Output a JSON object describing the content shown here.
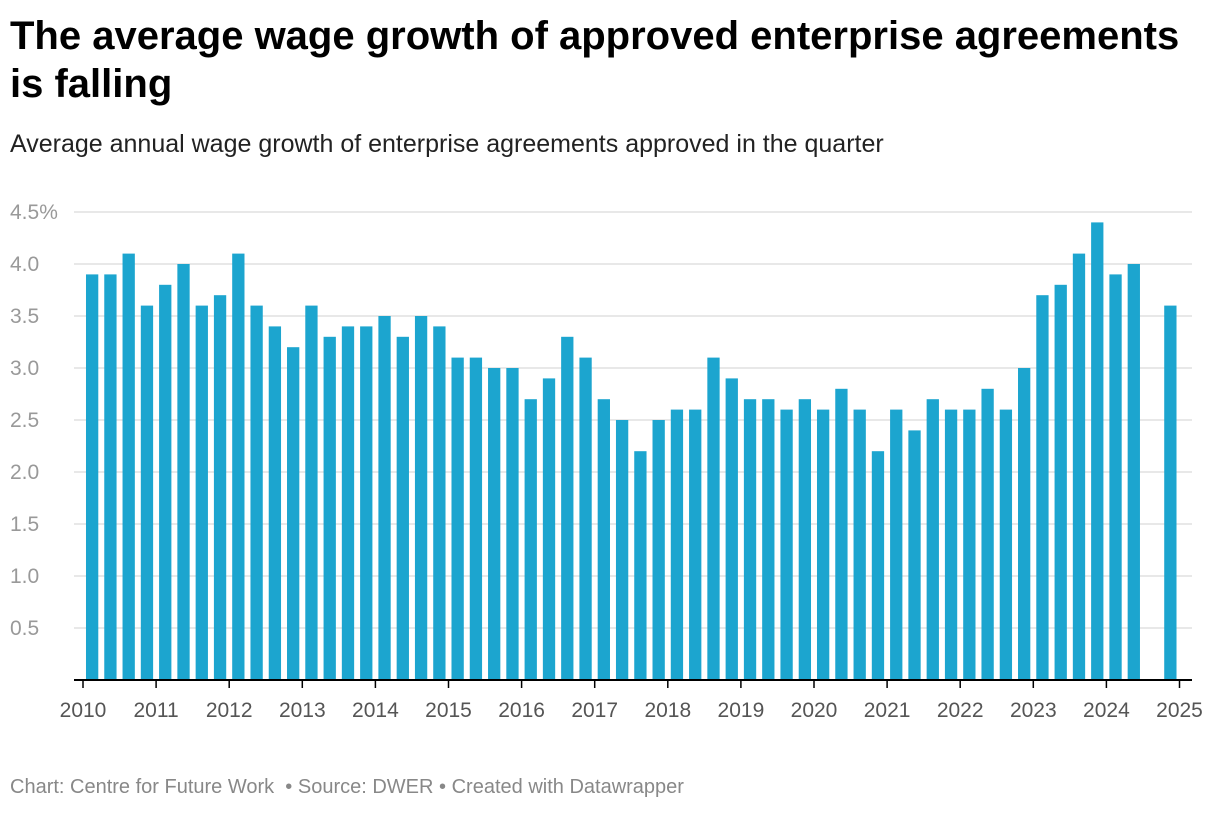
{
  "title": "The average wage growth of approved enterprise agreements is falling",
  "subtitle": "Average annual wage growth of enterprise agreements approved in the quarter",
  "footer": {
    "chart_credit": "Chart: Centre for Future Work",
    "source": "Source: DWER",
    "created_with": "Created with Datawrapper",
    "separator": "•"
  },
  "colors": {
    "bar": "#1ca5cf",
    "grid": "#e0e0e0",
    "axis": "#000000",
    "tick_text": "#999999"
  },
  "chart_data": {
    "type": "bar",
    "title": "The average wage growth of approved enterprise agreements is falling",
    "subtitle": "Average annual wage growth of enterprise agreements approved in the quarter",
    "xlabel": "",
    "ylabel": "",
    "ylim": [
      0,
      4.5
    ],
    "yticks": [
      0.5,
      1.0,
      1.5,
      2.0,
      2.5,
      3.0,
      3.5,
      4.0,
      4.5
    ],
    "ytick_labels": [
      "0.5",
      "1.0",
      "1.5",
      "2.0",
      "2.5",
      "3.0",
      "3.5",
      "4.0",
      "4.5%"
    ],
    "xticks": [
      "2010",
      "2011",
      "2012",
      "2013",
      "2014",
      "2015",
      "2016",
      "2017",
      "2018",
      "2019",
      "2020",
      "2021",
      "2022",
      "2023",
      "2024",
      "2025"
    ],
    "grid": true,
    "categories": [
      "2010 Q1",
      "2010 Q2",
      "2010 Q3",
      "2010 Q4",
      "2011 Q1",
      "2011 Q2",
      "2011 Q3",
      "2011 Q4",
      "2012 Q1",
      "2012 Q2",
      "2012 Q3",
      "2012 Q4",
      "2013 Q1",
      "2013 Q2",
      "2013 Q3",
      "2013 Q4",
      "2014 Q1",
      "2014 Q2",
      "2014 Q3",
      "2014 Q4",
      "2015 Q1",
      "2015 Q2",
      "2015 Q3",
      "2015 Q4",
      "2016 Q1",
      "2016 Q2",
      "2016 Q3",
      "2016 Q4",
      "2017 Q1",
      "2017 Q2",
      "2017 Q3",
      "2017 Q4",
      "2018 Q1",
      "2018 Q2",
      "2018 Q3",
      "2018 Q4",
      "2019 Q1",
      "2019 Q2",
      "2019 Q3",
      "2019 Q4",
      "2020 Q1",
      "2020 Q2",
      "2020 Q3",
      "2020 Q4",
      "2021 Q1",
      "2021 Q2",
      "2021 Q3",
      "2021 Q4",
      "2022 Q1",
      "2022 Q2",
      "2022 Q3",
      "2022 Q4",
      "2023 Q1",
      "2023 Q2",
      "2023 Q3",
      "2023 Q4",
      "2024 Q1",
      "2024 Q2",
      "2024 Q3",
      "2024 Q4"
    ],
    "values": [
      3.9,
      3.9,
      4.1,
      3.6,
      3.8,
      4.0,
      3.6,
      3.7,
      4.1,
      3.6,
      3.4,
      3.2,
      3.6,
      3.3,
      3.4,
      3.4,
      3.5,
      3.3,
      3.5,
      3.4,
      3.1,
      3.1,
      3.0,
      3.0,
      2.7,
      2.9,
      3.3,
      3.1,
      2.7,
      2.5,
      2.2,
      2.5,
      2.6,
      2.6,
      3.1,
      2.9,
      2.7,
      2.7,
      2.6,
      2.7,
      2.6,
      2.8,
      2.6,
      2.2,
      2.6,
      2.4,
      2.7,
      2.6,
      2.6,
      2.8,
      2.6,
      3.0,
      3.7,
      3.8,
      4.1,
      4.4,
      3.9,
      4.0,
      null,
      3.6
    ]
  }
}
